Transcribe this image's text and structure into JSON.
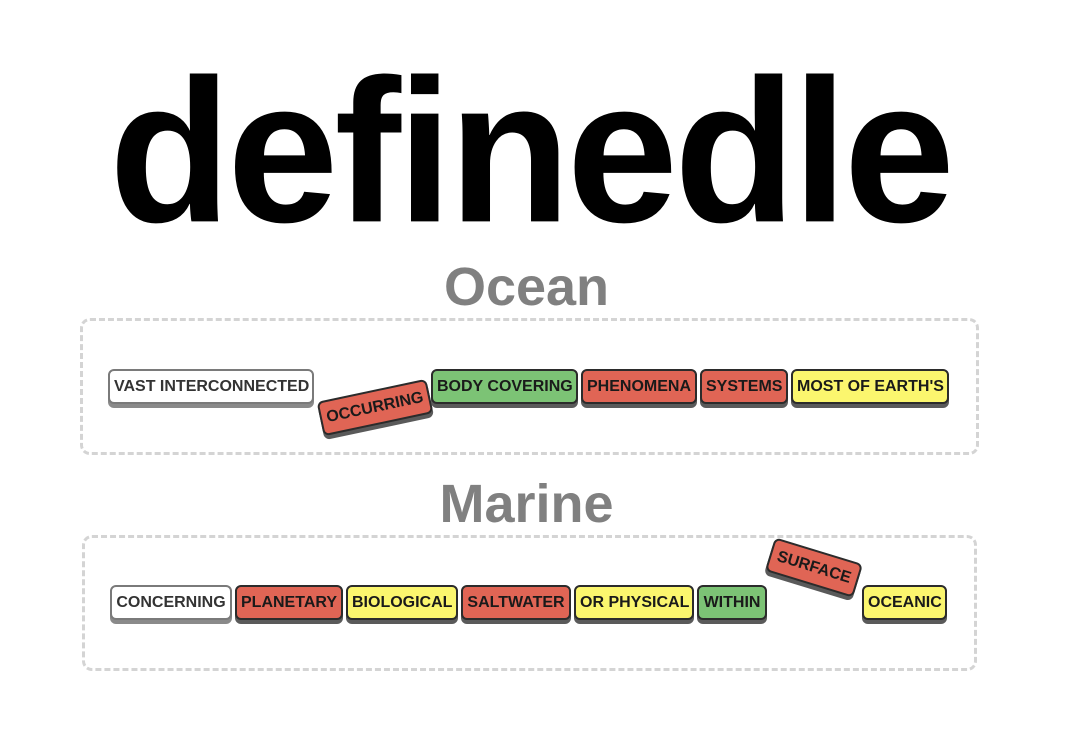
{
  "app": {
    "title": "definedle"
  },
  "colors": {
    "white": "#ffffff",
    "red": "#e06555",
    "green": "#7cc375",
    "yellow": "#fbf66e",
    "title_gray": "#808080"
  },
  "rounds": [
    {
      "word": "Ocean",
      "tiles": [
        {
          "text": "VAST INTERCONNECTED",
          "color": "white"
        },
        {
          "text": "OCCURRING",
          "color": "red"
        },
        {
          "text": "BODY COVERING",
          "color": "green"
        },
        {
          "text": "PHENOMENA",
          "color": "red"
        },
        {
          "text": "SYSTEMS",
          "color": "red"
        },
        {
          "text": "MOST OF EARTH'S",
          "color": "yellow"
        }
      ]
    },
    {
      "word": "Marine",
      "tiles": [
        {
          "text": "CONCERNING",
          "color": "white"
        },
        {
          "text": "PLANETARY",
          "color": "red"
        },
        {
          "text": "BIOLOGICAL",
          "color": "yellow"
        },
        {
          "text": "SALTWATER",
          "color": "red"
        },
        {
          "text": "OR PHYSICAL",
          "color": "yellow"
        },
        {
          "text": "WITHIN",
          "color": "green"
        },
        {
          "text": "SURFACE",
          "color": "red"
        },
        {
          "text": "OCEANIC",
          "color": "yellow"
        }
      ]
    }
  ]
}
